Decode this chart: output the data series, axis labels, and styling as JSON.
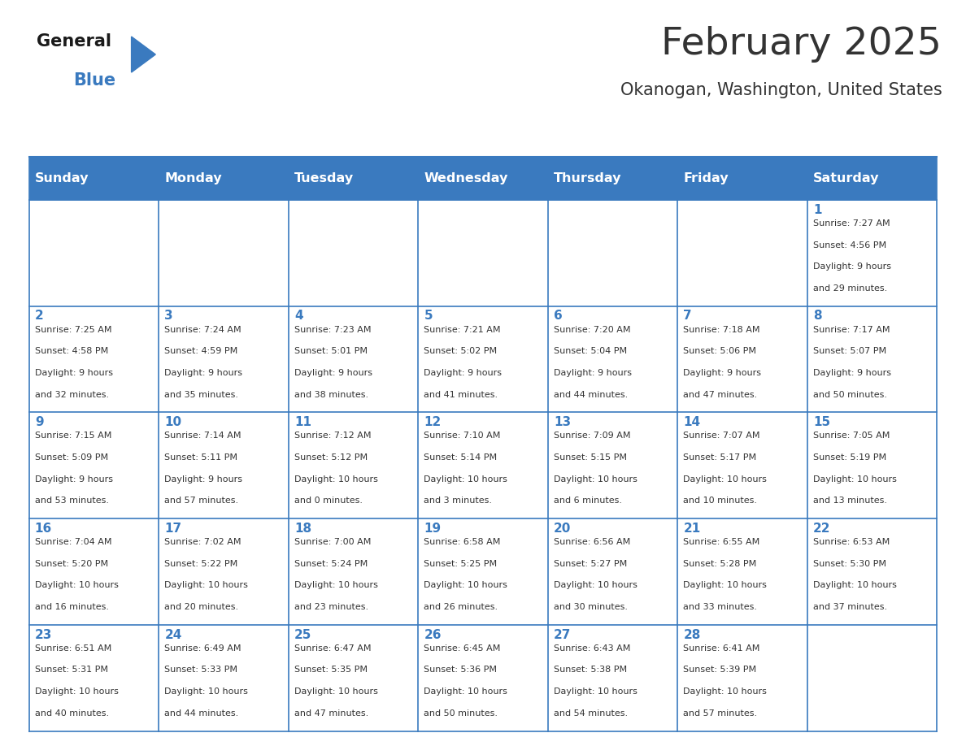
{
  "title": "February 2025",
  "subtitle": "Okanogan, Washington, United States",
  "header_bg": "#3a7abf",
  "header_text_color": "#ffffff",
  "cell_bg": "#ffffff",
  "border_color": "#3a7abf",
  "text_color": "#333333",
  "day_num_color": "#3a7abf",
  "days_of_week": [
    "Sunday",
    "Monday",
    "Tuesday",
    "Wednesday",
    "Thursday",
    "Friday",
    "Saturday"
  ],
  "logo_general_color": "#1a1a1a",
  "logo_blue_color": "#3a7abf",
  "weeks": [
    [
      {
        "day": 0,
        "info": ""
      },
      {
        "day": 0,
        "info": ""
      },
      {
        "day": 0,
        "info": ""
      },
      {
        "day": 0,
        "info": ""
      },
      {
        "day": 0,
        "info": ""
      },
      {
        "day": 0,
        "info": ""
      },
      {
        "day": 1,
        "info": "Sunrise: 7:27 AM\nSunset: 4:56 PM\nDaylight: 9 hours\nand 29 minutes."
      }
    ],
    [
      {
        "day": 2,
        "info": "Sunrise: 7:25 AM\nSunset: 4:58 PM\nDaylight: 9 hours\nand 32 minutes."
      },
      {
        "day": 3,
        "info": "Sunrise: 7:24 AM\nSunset: 4:59 PM\nDaylight: 9 hours\nand 35 minutes."
      },
      {
        "day": 4,
        "info": "Sunrise: 7:23 AM\nSunset: 5:01 PM\nDaylight: 9 hours\nand 38 minutes."
      },
      {
        "day": 5,
        "info": "Sunrise: 7:21 AM\nSunset: 5:02 PM\nDaylight: 9 hours\nand 41 minutes."
      },
      {
        "day": 6,
        "info": "Sunrise: 7:20 AM\nSunset: 5:04 PM\nDaylight: 9 hours\nand 44 minutes."
      },
      {
        "day": 7,
        "info": "Sunrise: 7:18 AM\nSunset: 5:06 PM\nDaylight: 9 hours\nand 47 minutes."
      },
      {
        "day": 8,
        "info": "Sunrise: 7:17 AM\nSunset: 5:07 PM\nDaylight: 9 hours\nand 50 minutes."
      }
    ],
    [
      {
        "day": 9,
        "info": "Sunrise: 7:15 AM\nSunset: 5:09 PM\nDaylight: 9 hours\nand 53 minutes."
      },
      {
        "day": 10,
        "info": "Sunrise: 7:14 AM\nSunset: 5:11 PM\nDaylight: 9 hours\nand 57 minutes."
      },
      {
        "day": 11,
        "info": "Sunrise: 7:12 AM\nSunset: 5:12 PM\nDaylight: 10 hours\nand 0 minutes."
      },
      {
        "day": 12,
        "info": "Sunrise: 7:10 AM\nSunset: 5:14 PM\nDaylight: 10 hours\nand 3 minutes."
      },
      {
        "day": 13,
        "info": "Sunrise: 7:09 AM\nSunset: 5:15 PM\nDaylight: 10 hours\nand 6 minutes."
      },
      {
        "day": 14,
        "info": "Sunrise: 7:07 AM\nSunset: 5:17 PM\nDaylight: 10 hours\nand 10 minutes."
      },
      {
        "day": 15,
        "info": "Sunrise: 7:05 AM\nSunset: 5:19 PM\nDaylight: 10 hours\nand 13 minutes."
      }
    ],
    [
      {
        "day": 16,
        "info": "Sunrise: 7:04 AM\nSunset: 5:20 PM\nDaylight: 10 hours\nand 16 minutes."
      },
      {
        "day": 17,
        "info": "Sunrise: 7:02 AM\nSunset: 5:22 PM\nDaylight: 10 hours\nand 20 minutes."
      },
      {
        "day": 18,
        "info": "Sunrise: 7:00 AM\nSunset: 5:24 PM\nDaylight: 10 hours\nand 23 minutes."
      },
      {
        "day": 19,
        "info": "Sunrise: 6:58 AM\nSunset: 5:25 PM\nDaylight: 10 hours\nand 26 minutes."
      },
      {
        "day": 20,
        "info": "Sunrise: 6:56 AM\nSunset: 5:27 PM\nDaylight: 10 hours\nand 30 minutes."
      },
      {
        "day": 21,
        "info": "Sunrise: 6:55 AM\nSunset: 5:28 PM\nDaylight: 10 hours\nand 33 minutes."
      },
      {
        "day": 22,
        "info": "Sunrise: 6:53 AM\nSunset: 5:30 PM\nDaylight: 10 hours\nand 37 minutes."
      }
    ],
    [
      {
        "day": 23,
        "info": "Sunrise: 6:51 AM\nSunset: 5:31 PM\nDaylight: 10 hours\nand 40 minutes."
      },
      {
        "day": 24,
        "info": "Sunrise: 6:49 AM\nSunset: 5:33 PM\nDaylight: 10 hours\nand 44 minutes."
      },
      {
        "day": 25,
        "info": "Sunrise: 6:47 AM\nSunset: 5:35 PM\nDaylight: 10 hours\nand 47 minutes."
      },
      {
        "day": 26,
        "info": "Sunrise: 6:45 AM\nSunset: 5:36 PM\nDaylight: 10 hours\nand 50 minutes."
      },
      {
        "day": 27,
        "info": "Sunrise: 6:43 AM\nSunset: 5:38 PM\nDaylight: 10 hours\nand 54 minutes."
      },
      {
        "day": 28,
        "info": "Sunrise: 6:41 AM\nSunset: 5:39 PM\nDaylight: 10 hours\nand 57 minutes."
      },
      {
        "day": 0,
        "info": ""
      }
    ]
  ]
}
